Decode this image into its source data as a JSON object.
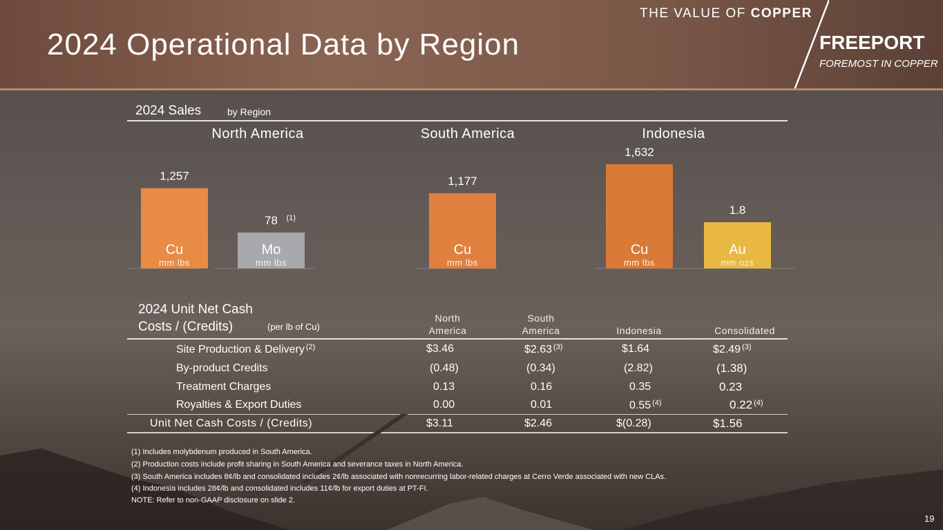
{
  "header": {
    "title": "2024 Operational Data by Region",
    "tagline_prefix": "THE VALUE OF ",
    "tagline_emphasis": "COPPER",
    "brand_name": "FREEPORT",
    "brand_tagline": "FOREMOST IN COPPER"
  },
  "sales": {
    "title": "2024 Sales",
    "subtitle": "by Region",
    "regions": [
      "North America",
      "South America",
      "Indonesia"
    ]
  },
  "chart_data": {
    "type": "bar",
    "title": "2024 Sales",
    "subtitle": "by Region",
    "bars": [
      {
        "region": "North America",
        "metal": "Cu",
        "unit": "mm lbs",
        "value": 1257,
        "label": "1,257",
        "note": "",
        "color": "#e88b44"
      },
      {
        "region": "North America",
        "metal": "Mo",
        "unit": "mm lbs",
        "value": 78,
        "label": "78",
        "note": "(1)",
        "color": "#a7a9ac"
      },
      {
        "region": "South America",
        "metal": "Cu",
        "unit": "mm lbs",
        "value": 1177,
        "label": "1,177",
        "note": "",
        "color": "#e0803e"
      },
      {
        "region": "Indonesia",
        "metal": "Cu",
        "unit": "mm lbs",
        "value": 1632,
        "label": "1,632",
        "note": "",
        "color": "#d97a36"
      },
      {
        "region": "Indonesia",
        "metal": "Au",
        "unit": "mm ozs",
        "value": 1.8,
        "label": "1.8",
        "note": "",
        "color": "#e8b842"
      }
    ]
  },
  "costs": {
    "title_line1": "2024 Unit Net Cash",
    "title_line2": "Costs / (Credits)",
    "subtitle": "(per lb of Cu)",
    "columns": [
      {
        "line1": "North",
        "line2": "America"
      },
      {
        "line1": "South",
        "line2": "America"
      },
      {
        "line1": "",
        "line2": "Indonesia"
      },
      {
        "line1": "",
        "line2": "Consolidated"
      }
    ],
    "rows": [
      {
        "label": "Site Production & Delivery",
        "note": "(2)",
        "cells": [
          {
            "value": "$3.46",
            "note": ""
          },
          {
            "value": "$2.63",
            "note": "(3)"
          },
          {
            "value": "$1.64",
            "note": ""
          },
          {
            "value": "$2.49",
            "note": "(3)"
          }
        ]
      },
      {
        "label": "By-product Credits",
        "note": "",
        "cells": [
          {
            "value": "(0.48)",
            "note": ""
          },
          {
            "value": "(0.34)",
            "note": ""
          },
          {
            "value": "(2.82)",
            "note": ""
          },
          {
            "value": "(1.38)",
            "note": ""
          }
        ]
      },
      {
        "label": "Treatment Charges",
        "note": "",
        "cells": [
          {
            "value": "0.13",
            "note": ""
          },
          {
            "value": "0.16",
            "note": ""
          },
          {
            "value": "0.35",
            "note": ""
          },
          {
            "value": "0.23",
            "note": ""
          }
        ]
      },
      {
        "label": "Royalties & Export Duties",
        "note": "",
        "cells": [
          {
            "value": "0.00",
            "note": ""
          },
          {
            "value": "0.01",
            "note": ""
          },
          {
            "value": "0.55",
            "note": "(4)"
          },
          {
            "value": "0.22",
            "note": "(4)"
          }
        ]
      }
    ],
    "total": {
      "label": "Unit Net Cash Costs / (Credits)",
      "cells": [
        "$3.11",
        "$2.46",
        "$(0.28)",
        "$1.56"
      ]
    }
  },
  "footnotes": [
    "(1) Includes molybdenum produced in South America.",
    "(2) Production costs include profit sharing in South America and severance taxes in North America.",
    "(3) South America includes 8¢/lb and consolidated includes 2¢/lb associated with nonrecurring labor-related charges at Cerro Verde associated with new CLAs.",
    "(4) Indonesia includes 28¢/lb and consolidated includes 11¢/lb for export duties at PT-FI.",
    "NOTE: Refer to non-GAAP disclosure on slide 2."
  ],
  "page_number": "19"
}
